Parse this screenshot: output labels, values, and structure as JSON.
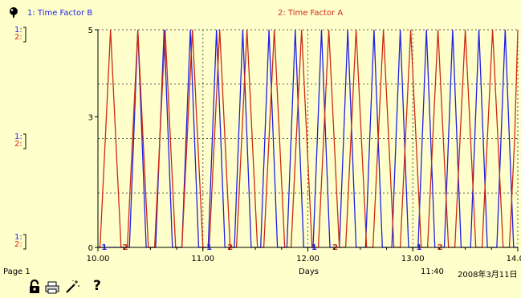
{
  "legend": {
    "series1": "1: Time Factor B",
    "series2": "2: Time Factor A"
  },
  "left_axis_labels": [
    {
      "s1": "1:",
      "s2": "2:"
    },
    {
      "s1": "1:",
      "s2": "2:"
    },
    {
      "s1": "1:",
      "s2": "2:"
    }
  ],
  "footer": {
    "page": "Page 1",
    "xlabel": "Days",
    "time": "11:40",
    "date": "2008年3月11日"
  },
  "toolbar": {
    "help": "?"
  },
  "colors": {
    "series1": "#1f1fe6",
    "series2": "#cc2a14",
    "background": "#ffffcc"
  },
  "chart_data": {
    "type": "line",
    "xlabel": "Days",
    "ylabel": "",
    "xlim": [
      10.0,
      14.0
    ],
    "ylim": [
      0,
      5
    ],
    "x_ticks": [
      "10.00",
      "11.00",
      "12.00",
      "13.00",
      "14.00"
    ],
    "y_ticks": [
      "0",
      "3",
      "5"
    ],
    "grid": true,
    "series": [
      {
        "name": "1: Time Factor B",
        "color": "#1f1fe6",
        "marker_label": "1",
        "x": [
          10.0,
          10.3,
          10.34,
          10.38,
          10.42,
          10.46,
          10.55,
          10.59,
          10.63,
          10.67,
          10.71,
          10.8,
          10.84,
          10.88,
          10.92,
          10.96,
          11.05,
          11.09,
          11.13,
          11.17,
          11.21,
          11.3,
          11.34,
          11.38,
          11.42,
          11.46,
          11.55,
          11.59,
          11.63,
          11.67,
          11.71,
          11.8,
          11.84,
          11.88,
          11.92,
          11.96,
          12.05,
          12.09,
          12.13,
          12.17,
          12.21,
          12.3,
          12.34,
          12.38,
          12.42,
          12.46,
          12.55,
          12.59,
          12.63,
          12.67,
          12.71,
          12.8,
          12.84,
          12.88,
          12.92,
          12.96,
          13.05,
          13.09,
          13.13,
          13.17,
          13.21,
          13.3,
          13.34,
          13.38,
          13.42,
          13.46,
          13.55,
          13.59,
          13.63,
          13.67,
          13.71,
          13.8,
          13.84,
          13.88,
          13.92,
          13.96,
          14.0
        ],
        "y": [
          0,
          0,
          2.5,
          5,
          2.5,
          0,
          0,
          2.5,
          5,
          2.5,
          0,
          0,
          2.5,
          5,
          2.5,
          0,
          0,
          2.5,
          5,
          2.5,
          0,
          0,
          2.5,
          5,
          2.5,
          0,
          0,
          2.5,
          5,
          2.5,
          0,
          0,
          2.5,
          5,
          2.5,
          0,
          0,
          2.5,
          5,
          2.5,
          0,
          0,
          2.5,
          5,
          2.5,
          0,
          0,
          2.5,
          5,
          2.5,
          0,
          0,
          2.5,
          5,
          2.5,
          0,
          0,
          2.5,
          5,
          2.5,
          0,
          0,
          2.5,
          5,
          2.5,
          0,
          0,
          2.5,
          5,
          2.5,
          0,
          0,
          2.5,
          5,
          2.5,
          0,
          0
        ]
      },
      {
        "name": "2: Time Factor A",
        "color": "#cc2a14",
        "marker_label": "2",
        "x": [
          10.0,
          10.02,
          10.07,
          10.12,
          10.17,
          10.22,
          10.28,
          10.33,
          10.38,
          10.43,
          10.48,
          10.54,
          10.59,
          10.64,
          10.69,
          10.74,
          10.8,
          10.85,
          10.9,
          10.95,
          11.0,
          11.06,
          11.11,
          11.16,
          11.21,
          11.26,
          11.32,
          11.37,
          11.42,
          11.47,
          11.52,
          11.58,
          11.63,
          11.68,
          11.73,
          11.78,
          11.84,
          11.89,
          11.94,
          11.99,
          12.04,
          12.1,
          12.15,
          12.2,
          12.25,
          12.3,
          12.36,
          12.41,
          12.46,
          12.51,
          12.56,
          12.62,
          12.67,
          12.72,
          12.77,
          12.82,
          12.88,
          12.93,
          12.98,
          13.03,
          13.08,
          13.14,
          13.19,
          13.24,
          13.29,
          13.34,
          13.4,
          13.45,
          13.5,
          13.55,
          13.6,
          13.66,
          13.71,
          13.76,
          13.81,
          13.86,
          13.92,
          13.97,
          14.0
        ],
        "y": [
          0,
          0,
          2.5,
          5,
          2.5,
          0,
          0,
          2.5,
          5,
          2.5,
          0,
          0,
          2.5,
          5,
          2.5,
          0,
          0,
          2.5,
          5,
          2.5,
          0,
          0,
          2.5,
          5,
          2.5,
          0,
          0,
          2.5,
          5,
          2.5,
          0,
          0,
          2.5,
          5,
          2.5,
          0,
          0,
          2.5,
          5,
          2.5,
          0,
          0,
          2.5,
          5,
          2.5,
          0,
          0,
          2.5,
          5,
          2.5,
          0,
          0,
          2.5,
          5,
          2.5,
          0,
          0,
          2.5,
          5,
          2.5,
          0,
          0,
          2.5,
          5,
          2.5,
          0,
          0,
          2.5,
          5,
          2.5,
          0,
          0,
          2.5,
          5,
          2.5,
          0,
          0,
          2.5,
          5
        ]
      }
    ]
  }
}
